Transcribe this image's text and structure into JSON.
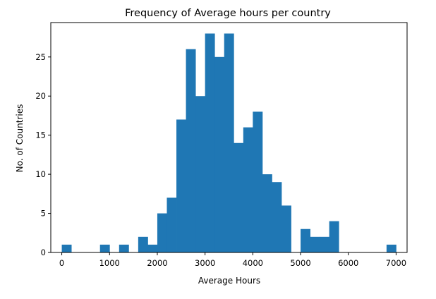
{
  "chart_data": {
    "type": "bar",
    "title": "Frequency of Average hours per country",
    "xlabel": "Average Hours",
    "ylabel": "No. of Countries",
    "xlim": [
      -230,
      7230
    ],
    "ylim": [
      0,
      29.4
    ],
    "xticks": [
      0,
      1000,
      2000,
      3000,
      4000,
      5000,
      6000,
      7000
    ],
    "yticks": [
      0,
      5,
      10,
      15,
      20,
      25
    ],
    "bin_edges": [
      0,
      200,
      400,
      600,
      800,
      1000,
      1200,
      1400,
      1600,
      1800,
      2000,
      2200,
      2400,
      2600,
      2800,
      3000,
      3200,
      3400,
      3600,
      3800,
      4000,
      4200,
      4400,
      4600,
      4800,
      5000,
      5200,
      5400,
      5600,
      5800,
      6000,
      6200,
      6400,
      6600,
      6800,
      7000
    ],
    "counts": [
      1,
      0,
      0,
      0,
      1,
      0,
      1,
      0,
      2,
      1,
      5,
      7,
      17,
      26,
      20,
      28,
      25,
      28,
      14,
      16,
      18,
      10,
      9,
      6,
      0,
      3,
      2,
      2,
      4,
      0,
      0,
      0,
      0,
      0,
      1
    ],
    "bar_color": "#1f77b4",
    "grid": false
  }
}
